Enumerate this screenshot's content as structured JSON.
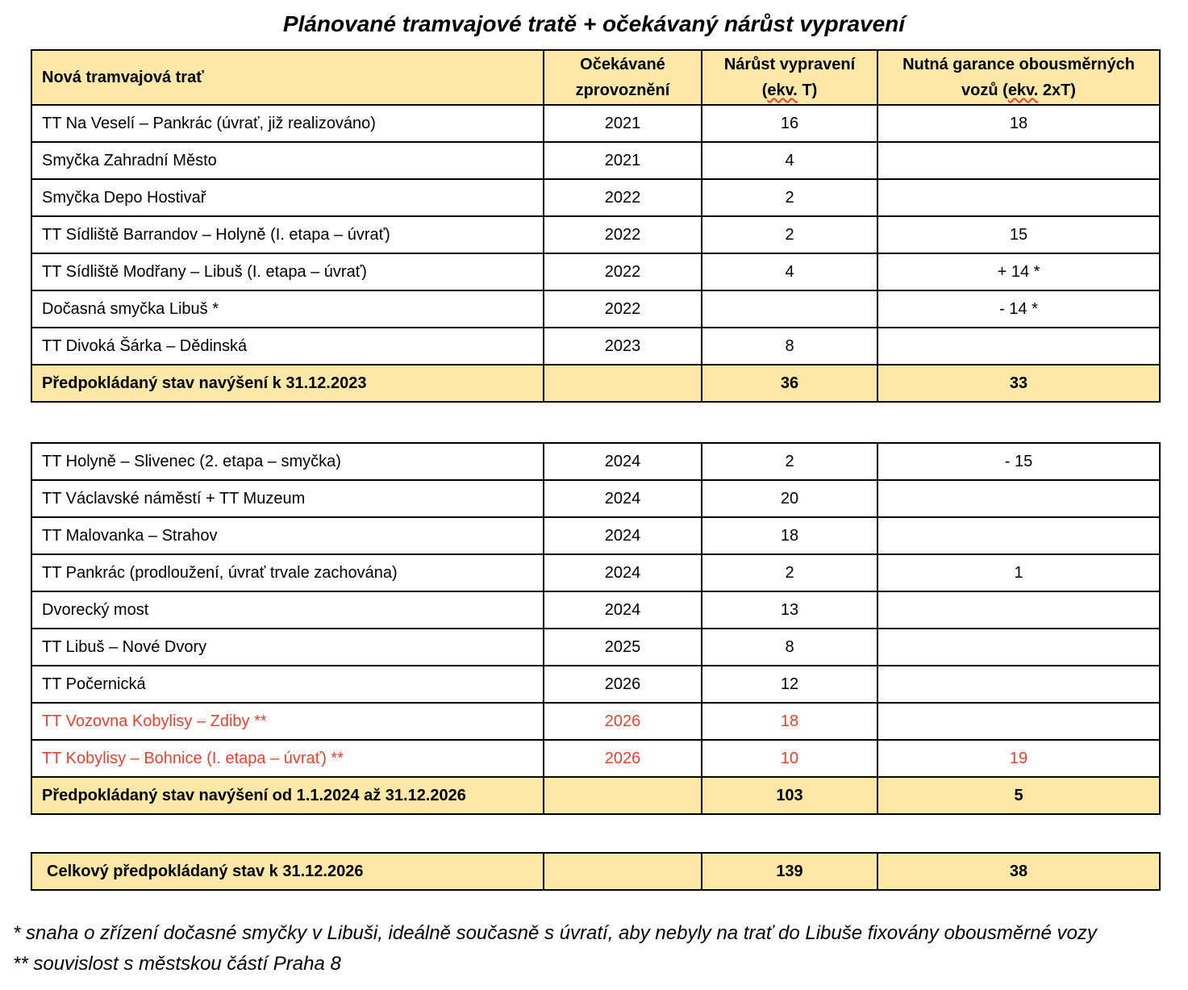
{
  "title": "Plánované tramvajové tratě + očekávaný nárůst vypravení",
  "header": {
    "col1": "Nová tramvajová trať",
    "col2_line1": "Očekávané",
    "col2_line2": "zprovoznění",
    "col3_line1": "Nárůst vypravení",
    "col3_line2a": "(",
    "col3_line2b": "ekv.",
    "col3_line2c": " T)",
    "col4_line1": "Nutná garance obousměrných",
    "col4_line2a": "vozů (",
    "col4_line2b": "ekv.",
    "col4_line2c": " 2xT)"
  },
  "section1": {
    "rows": [
      {
        "name": "TT Na Veselí – Pankrác (úvrať, již realizováno)",
        "year": "2021",
        "increase": "16",
        "guarantee": "18"
      },
      {
        "name": "Smyčka Zahradní Město",
        "year": "2021",
        "increase": "4",
        "guarantee": ""
      },
      {
        "name": "Smyčka Depo Hostivař",
        "year": "2022",
        "increase": "2",
        "guarantee": ""
      },
      {
        "name": "TT Sídliště Barrandov – Holyně (I. etapa – úvrať)",
        "year": "2022",
        "increase": "2",
        "guarantee": "15"
      },
      {
        "name": "TT Sídliště Modřany – Libuš (I. etapa – úvrať)",
        "year": "2022",
        "increase": "4",
        "guarantee": "+ 14 *"
      },
      {
        "name": "Dočasná smyčka Libuš *",
        "year": "2022",
        "increase": "",
        "guarantee": "- 14 *"
      },
      {
        "name": "TT Divoká Šárka – Dědinská",
        "year": "2023",
        "increase": "8",
        "guarantee": ""
      }
    ],
    "total": {
      "name": "Předpokládaný stav navýšení k 31.12.2023",
      "year": "",
      "increase": "36",
      "guarantee": "33"
    }
  },
  "section2": {
    "rows": [
      {
        "name": "TT Holyně – Slivenec (2. etapa – smyčka)",
        "year": "2024",
        "increase": "2",
        "guarantee": "- 15"
      },
      {
        "name": "TT Václavské náměstí + TT Muzeum",
        "year": "2024",
        "increase": "20",
        "guarantee": ""
      },
      {
        "name": "TT Malovanka – Strahov",
        "year": "2024",
        "increase": "18",
        "guarantee": ""
      },
      {
        "name": "TT Pankrác (prodloužení, úvrať trvale zachována)",
        "year": "2024",
        "increase": "2",
        "guarantee": "1"
      },
      {
        "name": "Dvorecký most",
        "year": "2024",
        "increase": "13",
        "guarantee": ""
      },
      {
        "name": "TT Libuš – Nové Dvory",
        "year": "2025",
        "increase": "8",
        "guarantee": ""
      },
      {
        "name": "TT Počernická",
        "year": "2026",
        "increase": "12",
        "guarantee": ""
      },
      {
        "name": "TT Vozovna Kobylisy – Zdiby **",
        "year": "2026",
        "increase": "18",
        "guarantee": ""
      },
      {
        "name": "TT Kobylisy – Bohnice (I. etapa – úvrať) **",
        "year": "2026",
        "increase": "10",
        "guarantee": "19"
      }
    ],
    "total": {
      "name": "Předpokládaný stav navýšení od 1.1.2024 až 31.12.2026",
      "year": "",
      "increase": "103",
      "guarantee": "5"
    }
  },
  "grand_total": {
    "name": "Celkový předpokládaný stav k 31.12.2026",
    "year": "",
    "increase": "139",
    "guarantee": "38"
  },
  "notes": {
    "note1": "* snaha o zřízení dočasné smyčky v Libuši, ideálně současně s úvratí, aby nebyly na trať do Libuše fixovány obousměrné vozy",
    "note2": "** souvislost s městskou částí Praha 8"
  },
  "colors": {
    "header_bg": "#FDE8A8",
    "highlight_red": "#E8412E"
  }
}
